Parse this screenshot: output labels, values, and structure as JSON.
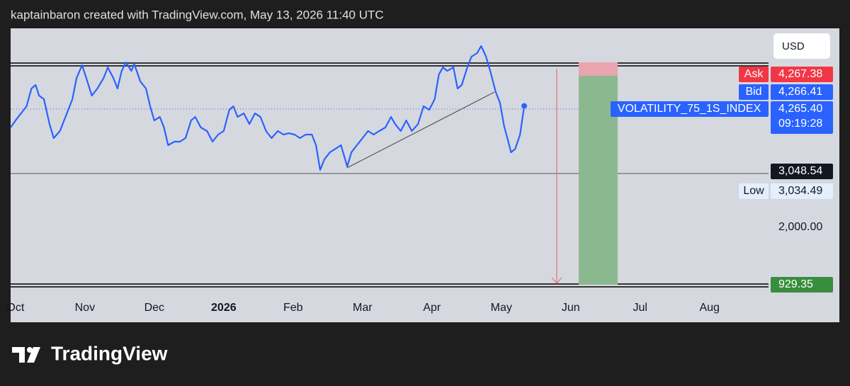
{
  "chart_data": {
    "type": "line",
    "caption": "kaptainbaron created with TradingView.com, May 13, 2026 11:40 UTC",
    "brand": "TradingView",
    "currency": "USD",
    "xlim": [
      -0.07,
      10.85
    ],
    "ylim": [
      229,
      5714
    ],
    "xticks": [
      {
        "value": 0,
        "label": "Oct"
      },
      {
        "value": 1,
        "label": "Nov"
      },
      {
        "value": 2,
        "label": "Dec"
      },
      {
        "value": 3,
        "label": "2026"
      },
      {
        "value": 4,
        "label": "Feb"
      },
      {
        "value": 5,
        "label": "Mar"
      },
      {
        "value": 6,
        "label": "Apr"
      },
      {
        "value": 7,
        "label": "May"
      },
      {
        "value": 8,
        "label": "Jun"
      },
      {
        "value": 9,
        "label": "Jul"
      },
      {
        "value": 10,
        "label": "Aug"
      }
    ],
    "yticks": [
      {
        "value": 2000,
        "label": "2,000.00"
      }
    ],
    "series": [
      {
        "name": "VOLATILITY_75_1S_INDEX",
        "color": "#2962ff",
        "x": [
          -0.07,
          0,
          0.08,
          0.16,
          0.23,
          0.29,
          0.34,
          0.41,
          0.49,
          0.55,
          0.64,
          0.74,
          0.82,
          0.88,
          0.96,
          1.02,
          1.1,
          1.18,
          1.27,
          1.33,
          1.41,
          1.47,
          1.53,
          1.59,
          1.67,
          1.71,
          1.8,
          1.88,
          1.94,
          2.0,
          2.08,
          2.14,
          2.2,
          2.29,
          2.37,
          2.45,
          2.53,
          2.59,
          2.67,
          2.76,
          2.84,
          2.92,
          3.0,
          3.08,
          3.14,
          3.2,
          3.29,
          3.37,
          3.45,
          3.53,
          3.61,
          3.69,
          3.78,
          3.86,
          3.94,
          4.02,
          4.1,
          4.18,
          4.27,
          4.33,
          4.39,
          4.45,
          4.53,
          4.61,
          4.69,
          4.78,
          4.84,
          4.92,
          5.0,
          5.08,
          5.16,
          5.24,
          5.33,
          5.41,
          5.47,
          5.55,
          5.63,
          5.71,
          5.8,
          5.88,
          5.96,
          6.04,
          6.1,
          6.16,
          6.22,
          6.31,
          6.37,
          6.43,
          6.51,
          6.57,
          6.65,
          6.71,
          6.78,
          6.84,
          6.92,
          6.98,
          7.04,
          7.1,
          7.14,
          7.2,
          7.27,
          7.33
        ],
        "values": [
          3863,
          3995,
          4127,
          4260,
          4590,
          4656,
          4458,
          4392,
          3929,
          3665,
          3797,
          4127,
          4392,
          4788,
          5026,
          4788,
          4458,
          4590,
          4788,
          4986,
          4788,
          4590,
          4920,
          5079,
          4920,
          5052,
          4722,
          4590,
          4260,
          3995,
          4061,
          3863,
          3533,
          3599,
          3599,
          3665,
          3995,
          4061,
          3863,
          3797,
          3599,
          3731,
          3797,
          4193,
          4260,
          4061,
          4127,
          3929,
          4127,
          4061,
          3797,
          3665,
          3797,
          3731,
          3757,
          3731,
          3665,
          3731,
          3731,
          3533,
          3070,
          3268,
          3400,
          3466,
          3533,
          3136,
          3400,
          3533,
          3665,
          3797,
          3731,
          3797,
          3863,
          4061,
          3929,
          3797,
          3995,
          3797,
          3929,
          4260,
          4193,
          4392,
          4854,
          4986,
          4920,
          4986,
          4590,
          4656,
          4986,
          5185,
          5251,
          5383,
          5185,
          4920,
          4524,
          4326,
          3889,
          3599,
          3400,
          3466,
          3731,
          4265.4
        ]
      }
    ],
    "markers": [
      {
        "name": "Ask",
        "value": 4267.38,
        "label": "4,267.38",
        "color": "#f23645"
      },
      {
        "name": "Bid",
        "value": 4266.41,
        "label": "4,266.41",
        "color": "#2962ff"
      },
      {
        "value": 4265.4,
        "label": "4,265.40",
        "time": "09:19:28",
        "color": "#2962ff"
      },
      {
        "value": 3048.54,
        "label": "3,048.54",
        "color": "#131722"
      },
      {
        "name": "Low",
        "value": 3034.49,
        "label": "3,034.49",
        "color": "#e3effd"
      },
      {
        "value": 929.35,
        "label": "929.35",
        "color": "#388e3c"
      }
    ]
  }
}
